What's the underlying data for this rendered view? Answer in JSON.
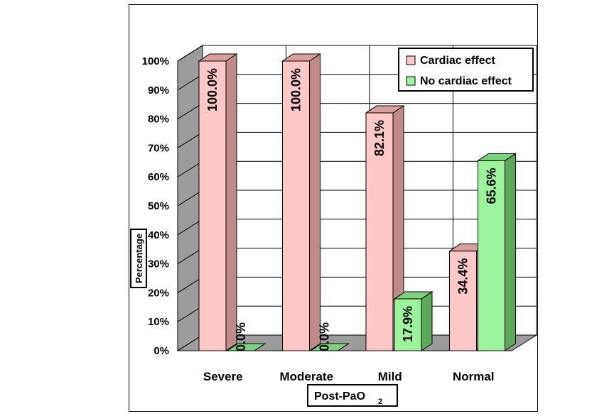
{
  "chart_data": {
    "type": "bar",
    "categories": [
      "Severe",
      "Moderate",
      "Mild",
      "Normal"
    ],
    "series": [
      {
        "name": "Cardiac effect",
        "values": [
          100.0,
          100.0,
          82.1,
          34.4
        ],
        "labels": [
          "100.0%",
          "100.0%",
          "82.1%",
          "34.4%"
        ],
        "color": "#ffc8c8",
        "side_color": "#c08a8a",
        "top_color": "#d89f9f"
      },
      {
        "name": "No cardiac effect",
        "values": [
          0.0,
          0.0,
          17.9,
          65.6
        ],
        "labels": [
          "0.0%",
          "0.0%",
          "17.9%",
          "65.6%"
        ],
        "color": "#9cf59c",
        "side_color": "#5aa85a",
        "top_color": "#7ed27e"
      }
    ],
    "yticks": [
      "0%",
      "10%",
      "20%",
      "30%",
      "40%",
      "50%",
      "60%",
      "70%",
      "80%",
      "90%",
      "100%"
    ],
    "ylim": [
      0,
      100
    ],
    "ylabel": "Percentage",
    "xlabel_main": "Post-PaO",
    "xlabel_sub": "2",
    "grid": true,
    "legend_position": "top-right",
    "style": "3d"
  }
}
